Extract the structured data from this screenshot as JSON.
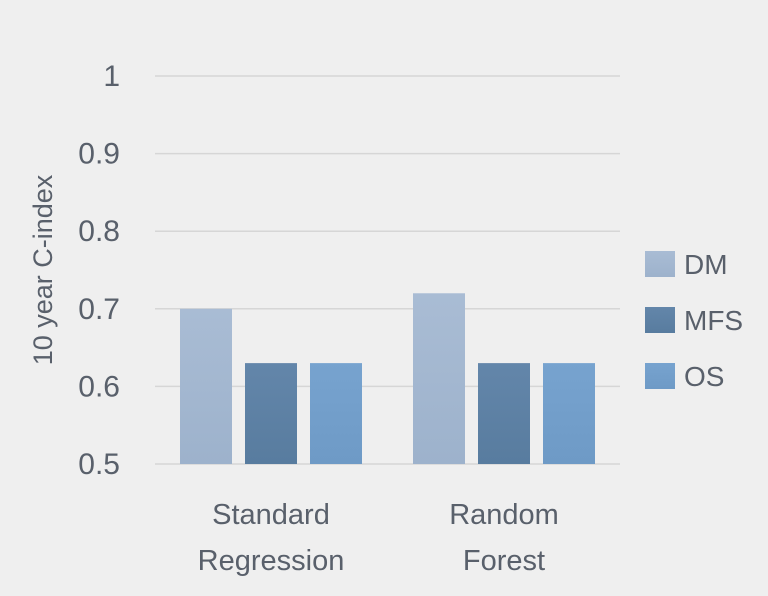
{
  "chart_data": {
    "type": "bar",
    "categories": [
      [
        "Standard",
        "Regression"
      ],
      [
        "Random",
        "Forest"
      ]
    ],
    "ylabel": "10 year C-index",
    "xlabel": "",
    "ylim": [
      0.5,
      1
    ],
    "yticks": [
      "0.5",
      "0.6",
      "0.7",
      "0.8",
      "0.9",
      "1"
    ],
    "grid": true,
    "legend_position": "right",
    "series": [
      {
        "name": "DM",
        "values": [
          0.7,
          0.72
        ],
        "color": "#a9bcd4",
        "color_dark": "#9db2cc"
      },
      {
        "name": "MFS",
        "values": [
          0.63,
          0.63
        ],
        "color": "#6386aa",
        "color_dark": "#587c9f"
      },
      {
        "name": "OS",
        "values": [
          0.63,
          0.63
        ],
        "color": "#77a3cf",
        "color_dark": "#6e9ac6"
      }
    ]
  }
}
